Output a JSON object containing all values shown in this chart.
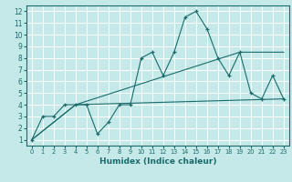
{
  "xlabel": "Humidex (Indice chaleur)",
  "bg_color": "#c5e8e8",
  "grid_color": "#ffffff",
  "line_color": "#1a6b6b",
  "xlim": [
    -0.5,
    23.5
  ],
  "ylim": [
    0.5,
    12.5
  ],
  "xticks": [
    0,
    1,
    2,
    3,
    4,
    5,
    6,
    7,
    8,
    9,
    10,
    11,
    12,
    13,
    14,
    15,
    16,
    17,
    18,
    19,
    20,
    21,
    22,
    23
  ],
  "yticks": [
    1,
    2,
    3,
    4,
    5,
    6,
    7,
    8,
    9,
    10,
    11,
    12
  ],
  "main_x": [
    0,
    1,
    2,
    3,
    4,
    5,
    6,
    7,
    8,
    9,
    10,
    11,
    12,
    13,
    14,
    15,
    16,
    17,
    18,
    19,
    20,
    21,
    22,
    23
  ],
  "main_y": [
    1,
    3,
    3,
    4,
    4,
    4,
    1.5,
    2.5,
    4,
    4,
    8,
    8.5,
    6.5,
    8.5,
    11.5,
    12,
    10.5,
    8,
    6.5,
    8.5,
    5,
    4.5,
    6.5,
    4.5
  ],
  "line2_x": [
    0,
    4,
    19,
    23
  ],
  "line2_y": [
    1,
    4,
    8.5,
    8.5
  ],
  "line3_x": [
    0,
    4,
    23
  ],
  "line3_y": [
    1,
    4,
    4.5
  ],
  "tick_fontsize": 5.5,
  "xlabel_fontsize": 6.5
}
